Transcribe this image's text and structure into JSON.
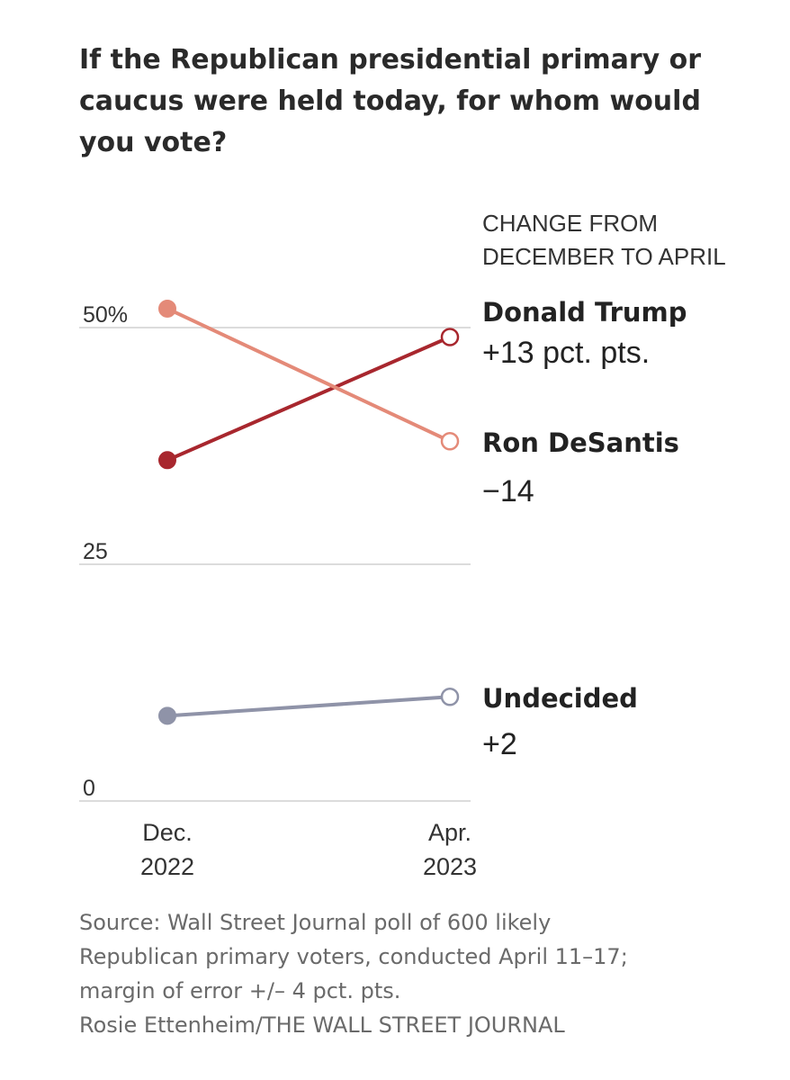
{
  "title": "If the Republican presidential primary or caucus were held today, for whom would you vote?",
  "chart_data": {
    "type": "line",
    "title": "If the Republican presidential primary or caucus were held today, for whom would you vote?",
    "x": [
      "Dec. 2022",
      "Apr. 2023"
    ],
    "x_labels": [
      [
        "Dec.",
        "2022"
      ],
      [
        "Apr.",
        "2023"
      ]
    ],
    "ylim": [
      0,
      50
    ],
    "y_ticks": [
      {
        "value": 50,
        "label": "50%"
      },
      {
        "value": 25,
        "label": "25"
      },
      {
        "value": 0,
        "label": "0"
      }
    ],
    "grid": true,
    "change_header": [
      "CHANGE FROM",
      "DECEMBER TO APRIL"
    ],
    "series": [
      {
        "name": "Donald Trump",
        "change": "+13 pct. pts.",
        "values": [
          36,
          49
        ],
        "color": "#a8272e"
      },
      {
        "name": "Ron DeSantis",
        "change": "−14",
        "values": [
          52,
          38
        ],
        "color": "#e48a78"
      },
      {
        "name": "Undecided",
        "change": "+2",
        "values": [
          9,
          11
        ],
        "color": "#8f93a8"
      }
    ]
  },
  "source_lines": [
    "Source: Wall Street Journal poll of 600 likely",
    "Republican primary voters, conducted April 11–17;",
    "margin of error +/– 4 pct. pts.",
    "Rosie Ettenheim/THE WALL STREET JOURNAL"
  ]
}
